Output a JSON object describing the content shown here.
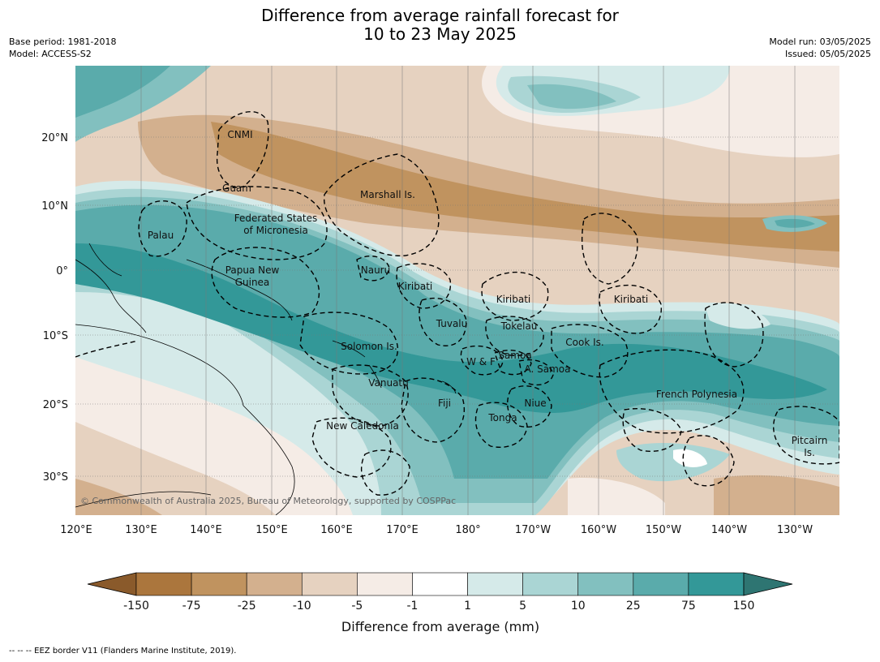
{
  "title_line1": "Difference from average rainfall forecast for",
  "title_line2": "10 to 23 May 2025",
  "base_period": "Base period: 1981-2018",
  "model": "Model: ACCESS-S2",
  "model_run": "Model run: 03/05/2025",
  "issued": "Issued: 05/05/2025",
  "lon_labels": [
    "120°E",
    "130°E",
    "140°E",
    "150°E",
    "160°E",
    "170°E",
    "180°",
    "170°W",
    "160°W",
    "150°W",
    "140°W",
    "130°W"
  ],
  "lat_labels": [
    "20°N",
    "10°N",
    "0°",
    "10°S",
    "20°S",
    "30°S"
  ],
  "places": [
    "CNMI",
    "Guam",
    "Marshall Is.",
    "Federated States",
    "of Micronesia",
    "Palau",
    "Nauru",
    "Papua New",
    "Guinea",
    "Kiribati",
    "Kiribati",
    "Kiribati",
    "Tuvalu",
    "Tokelau",
    "Cook Is.",
    "Solomon Is.",
    "W & F",
    "Samoa",
    "A. Samoa",
    "Vanuatu",
    "Fiji",
    "Niue",
    "Tonga",
    "French Polynesia",
    "New Caledonia",
    "Pitcairn",
    "Is."
  ],
  "copyright": "© Commonwealth of Australia 2025, Bureau of Meteorology, supported by COSPPac",
  "colorbar": {
    "ticks": [
      "-150",
      "-75",
      "-25",
      "-10",
      "-5",
      "-1",
      "1",
      "5",
      "10",
      "25",
      "75",
      "150"
    ],
    "colors": [
      "#8a5a2b",
      "#ab763d",
      "#c0935f",
      "#d3b08e",
      "#e6d2c0",
      "#f5ece6",
      "#ffffff",
      "#d5eae9",
      "#aad5d4",
      "#82c0bf",
      "#5aabab",
      "#339898",
      "#2e7572"
    ],
    "title": "Difference from average (mm)"
  },
  "footnote": "--  --  -- EEZ border V11 (Flanders Marine Institute, 2019)."
}
